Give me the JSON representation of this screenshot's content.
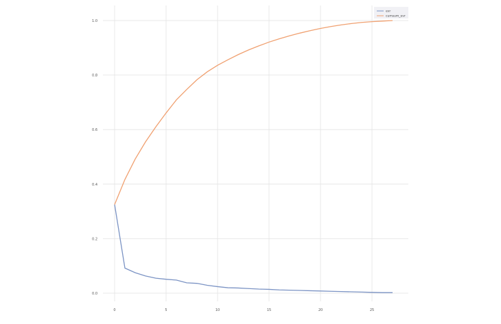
{
  "chart_data": {
    "type": "line",
    "title": "",
    "xlabel": "",
    "ylabel": "",
    "x": [
      0,
      1,
      2,
      3,
      4,
      5,
      6,
      7,
      8,
      9,
      10,
      11,
      12,
      13,
      14,
      15,
      16,
      17,
      18,
      19,
      20,
      21,
      22,
      23,
      24,
      25,
      26,
      27
    ],
    "xlim": [
      0,
      27
    ],
    "ylim": [
      0,
      1.0
    ],
    "x_ticks": [
      0,
      5,
      10,
      15,
      20,
      25
    ],
    "x_tick_labels": [
      "0",
      "5",
      "10",
      "15",
      "20",
      "25"
    ],
    "y_ticks": [
      0,
      0.2,
      0.4,
      0.6,
      0.8,
      1.0
    ],
    "y_tick_labels": [
      "0.0",
      "0.2",
      "0.4",
      "0.6",
      "0.8",
      "1.0"
    ],
    "grid": true,
    "legend_position": "top-right",
    "series": [
      {
        "name": "evr",
        "color": "#7b93c4",
        "values": [
          0.325,
          0.092,
          0.075,
          0.063,
          0.055,
          0.051,
          0.048,
          0.038,
          0.036,
          0.029,
          0.024,
          0.02,
          0.019,
          0.017,
          0.015,
          0.014,
          0.012,
          0.011,
          0.01,
          0.009,
          0.008,
          0.007,
          0.006,
          0.005,
          0.004,
          0.003,
          0.002,
          0.002
        ]
      },
      {
        "name": "cumsum_evr",
        "color": "#f0a070",
        "values": [
          0.325,
          0.417,
          0.492,
          0.555,
          0.61,
          0.661,
          0.709,
          0.747,
          0.783,
          0.812,
          0.836,
          0.856,
          0.875,
          0.892,
          0.907,
          0.921,
          0.933,
          0.944,
          0.954,
          0.963,
          0.971,
          0.978,
          0.984,
          0.989,
          0.993,
          0.996,
          0.998,
          1.0
        ]
      }
    ]
  }
}
